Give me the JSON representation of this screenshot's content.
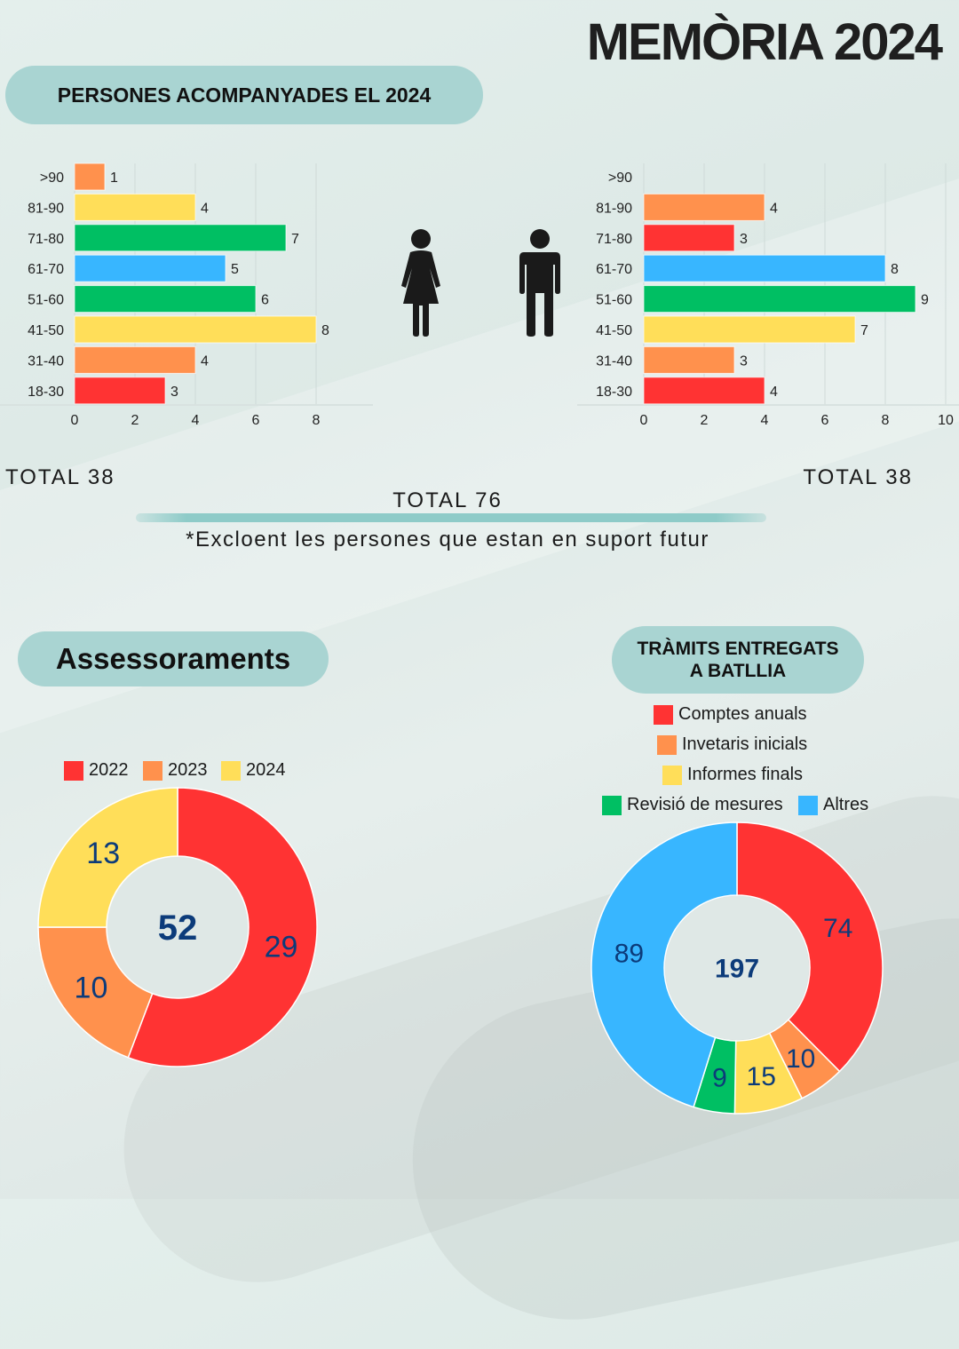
{
  "title": "MEMÒRIA 2024",
  "section_persones": {
    "title": "PERSONES ACOMPANYADES EL 2024"
  },
  "totals": {
    "women": "TOTAL 38",
    "men": "TOTAL 38",
    "all": "TOTAL 76"
  },
  "footnote": "*Excloent les persones que estan en suport futur",
  "section_assess": {
    "title": "Assessoraments"
  },
  "section_tramits": {
    "title_line1": "TRÀMITS ENTREGATS",
    "title_line2": "A BATLLIA"
  },
  "icons": {
    "women": "woman-icon",
    "men": "man-icon"
  },
  "colors": {
    "red": "#ff3333",
    "orange": "#ff914d",
    "yellow": "#ffde59",
    "green": "#00bf63",
    "blue": "#38b6ff",
    "center_text": "#0c3b7a"
  },
  "chart_data": [
    {
      "type": "bar",
      "orientation": "horizontal",
      "categories": [
        ">90",
        "81-90",
        "71-80",
        "61-70",
        "51-60",
        "41-50",
        "31-40",
        "18-30"
      ],
      "values": [
        1,
        4,
        7,
        5,
        6,
        8,
        4,
        3
      ],
      "bar_colors": [
        "#ff914d",
        "#ffde59",
        "#00bf63",
        "#38b6ff",
        "#00bf63",
        "#ffde59",
        "#ff914d",
        "#ff3333"
      ],
      "xlim": [
        0,
        8
      ],
      "xticks": [
        "0",
        "2",
        "4",
        "6",
        "8"
      ],
      "grid": true
    },
    {
      "type": "bar",
      "orientation": "horizontal",
      "categories": [
        ">90",
        "81-90",
        "71-80",
        "61-70",
        "51-60",
        "41-50",
        "31-40",
        "18-30"
      ],
      "values": [
        0,
        4,
        3,
        8,
        9,
        7,
        3,
        4
      ],
      "bar_colors": [
        "#ff914d",
        "#ff914d",
        "#ff3333",
        "#38b6ff",
        "#00bf63",
        "#ffde59",
        "#ff914d",
        "#ff3333"
      ],
      "xlim": [
        0,
        10
      ],
      "xticks": [
        "0",
        "2",
        "4",
        "6",
        "8",
        "10"
      ],
      "grid": true
    },
    {
      "type": "pie",
      "donut": true,
      "center_label": "52",
      "legend": [
        "2022",
        "2023",
        "2024"
      ],
      "legend_position": "top",
      "slices": [
        {
          "label": "2022",
          "value": 29,
          "color": "#ff3333"
        },
        {
          "label": "2023",
          "value": 10,
          "color": "#ff914d"
        },
        {
          "label": "2024",
          "value": 13,
          "color": "#ffde59"
        }
      ]
    },
    {
      "type": "pie",
      "donut": true,
      "center_label": "197",
      "legend": [
        "Comptes anuals",
        "Invetaris inicials",
        "Informes finals",
        "Revisió de mesures",
        "Altres"
      ],
      "legend_position": "top",
      "slices": [
        {
          "label": "Comptes anuals",
          "value": 74,
          "color": "#ff3333"
        },
        {
          "label": "Invetaris inicials",
          "value": 10,
          "color": "#ff914d"
        },
        {
          "label": "Informes finals",
          "value": 15,
          "color": "#ffde59"
        },
        {
          "label": "Revisió de mesures",
          "value": 9,
          "color": "#00bf63"
        },
        {
          "label": "Altres",
          "value": 89,
          "color": "#38b6ff"
        }
      ]
    }
  ]
}
